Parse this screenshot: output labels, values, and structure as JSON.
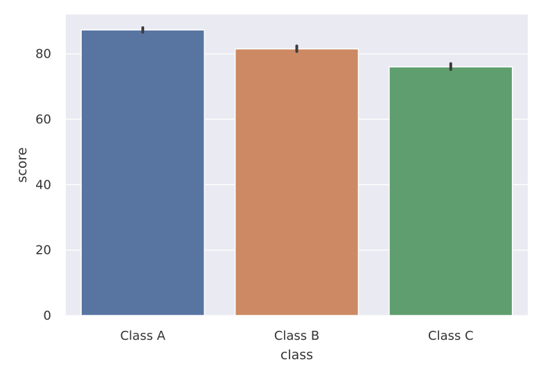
{
  "chart_data": {
    "type": "bar",
    "categories": [
      "Class A",
      "Class B",
      "Class C"
    ],
    "values": [
      87.3,
      81.5,
      76.0
    ],
    "error_bars": [
      [
        86.6,
        88.0
      ],
      [
        80.7,
        82.4
      ],
      [
        75.2,
        77.0
      ]
    ],
    "colors": [
      "#5875a2",
      "#cc8963",
      "#5f9e6e"
    ],
    "xlabel": "class",
    "ylabel": "score",
    "ylim": [
      0,
      92
    ],
    "yticks": [
      0,
      20,
      40,
      60,
      80
    ],
    "grid": true,
    "background": "#eaeaf2"
  }
}
